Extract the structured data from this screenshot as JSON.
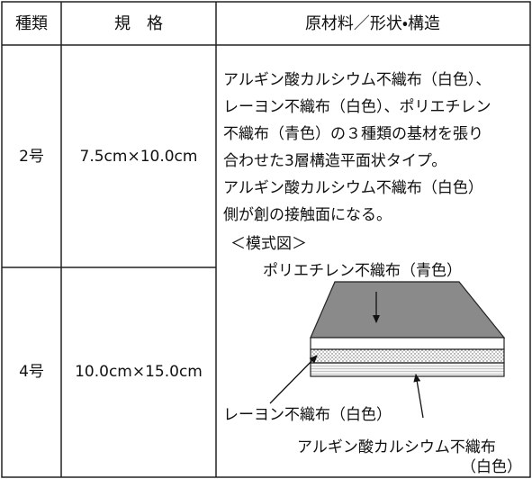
{
  "table": {
    "headers": [
      "種類",
      "規　格",
      "原材料／形状・構造"
    ],
    "rows": [
      [
        "2号",
        "7.5cm×10.0cm"
      ],
      [
        "4号",
        "10.0cm×15.0cm"
      ]
    ],
    "description": [
      "アルギン酸カルシウム不織布（白色）、",
      "レーヨン不織布（白色）、ポリエチレン",
      "不織布（青色）の３種類の基材を張り",
      "合わせた3層構造平面状タイプ。",
      "アルギン酸カルシウム不織布（白色）",
      "側が創の接触面になる。"
    ],
    "diagram": {
      "title": "＜模式図＞",
      "top_label": "ポリエチレン不織布（青色）",
      "middle_label": "レーヨン不織布（白色）",
      "bottom_label": [
        "アルギン酸カルシウム不織布",
        "（白色）"
      ]
    }
  }
}
